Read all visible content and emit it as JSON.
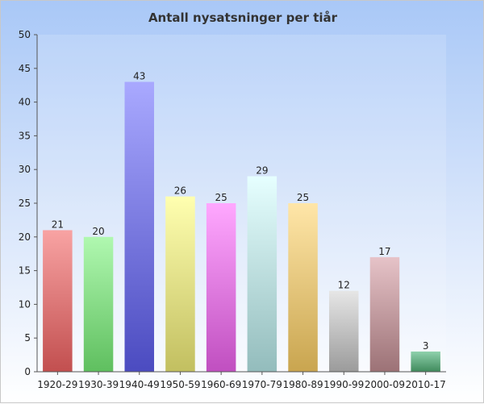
{
  "chart_data": {
    "type": "bar",
    "title": "Antall nysatsninger per tiår",
    "xlabel": "",
    "ylabel": "",
    "ylim": [
      0,
      50
    ],
    "yticks": [
      0,
      5,
      10,
      15,
      20,
      25,
      30,
      35,
      40,
      45,
      50
    ],
    "categories": [
      "1920-29",
      "1930-39",
      "1940-49",
      "1950-59",
      "1960-69",
      "1970-79",
      "1980-89",
      "1990-99",
      "2000-09",
      "2010-17"
    ],
    "values": [
      21,
      20,
      43,
      26,
      25,
      29,
      25,
      12,
      17,
      3
    ],
    "data_labels": [
      "21",
      "20",
      "43",
      "26",
      "25",
      "29",
      "25",
      "12",
      "17",
      "3"
    ],
    "grid": false,
    "legend": "none",
    "bar_colors": [
      [
        "#f8a3a3",
        "#c24f4f"
      ],
      [
        "#b0f8b0",
        "#5fbf5f"
      ],
      [
        "#a9a9ff",
        "#4b4bc0"
      ],
      [
        "#ffffb0",
        "#c2bf60"
      ],
      [
        "#ffa8ff",
        "#c04fc0"
      ],
      [
        "#e6ffff",
        "#93bcbc"
      ],
      [
        "#ffe6a8",
        "#c9a54f"
      ],
      [
        "#e6e6e6",
        "#9b9b9b"
      ],
      [
        "#e6c3c8",
        "#9c7276"
      ],
      [
        "#8fd1ac",
        "#3f8a5c"
      ]
    ]
  }
}
